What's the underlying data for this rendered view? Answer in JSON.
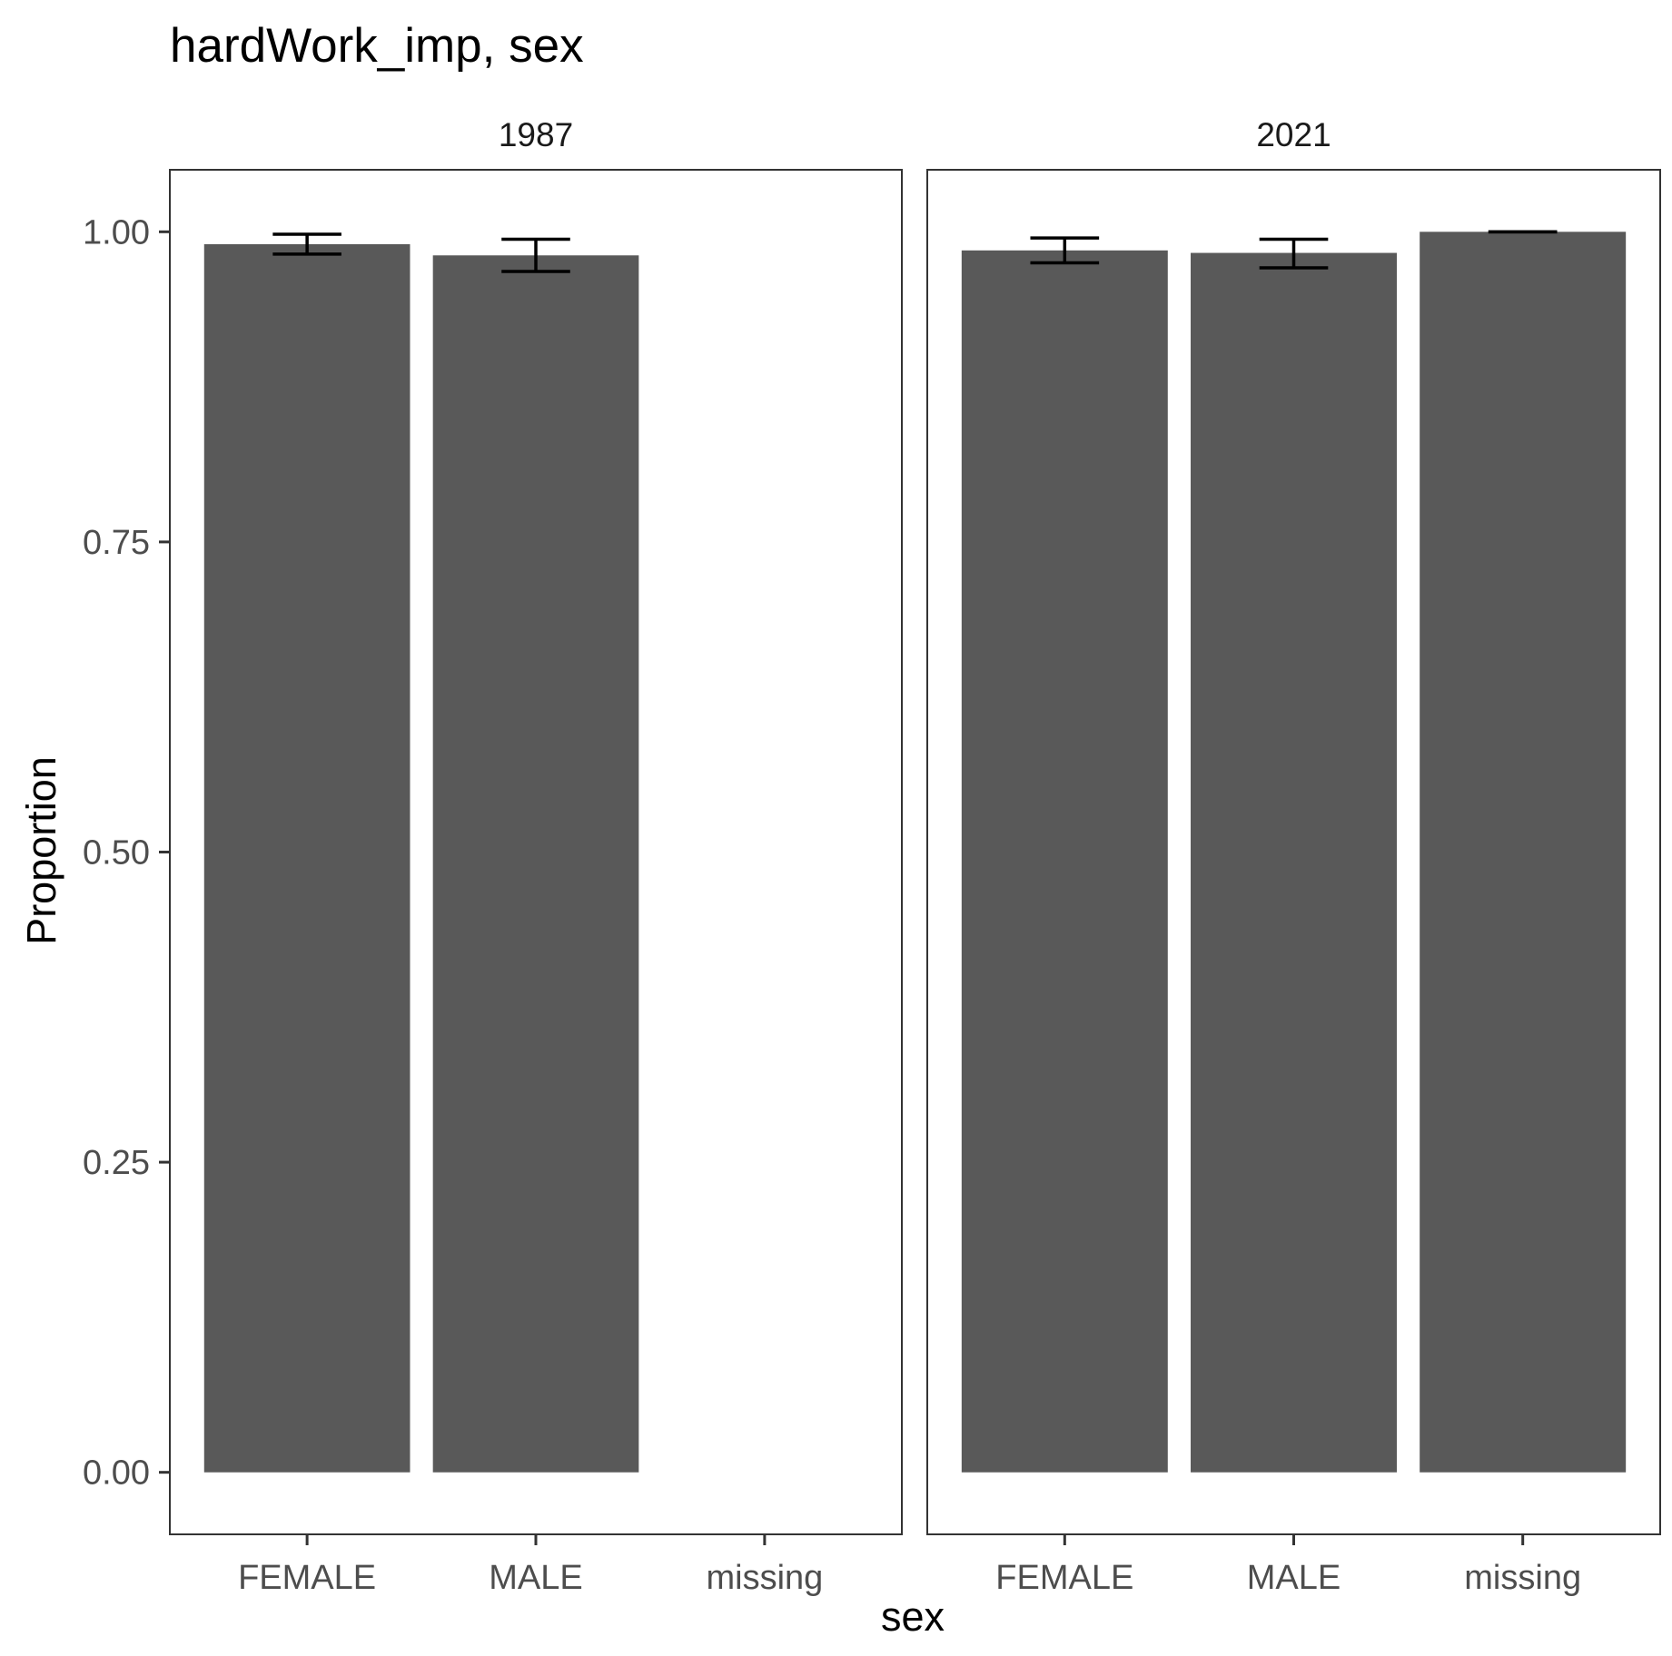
{
  "chart_data": {
    "type": "bar",
    "title": "hardWork_imp, sex",
    "xlabel": "sex",
    "ylabel": "Proportion",
    "ylim": [
      -0.05,
      1.05
    ],
    "yticks": [
      "0.00",
      "0.25",
      "0.50",
      "0.75",
      "1.00"
    ],
    "categories": [
      "FEMALE",
      "MALE",
      "missing"
    ],
    "grid": false,
    "bar_color": "#595959",
    "facets": [
      {
        "label": "1987",
        "bars": [
          {
            "category": "FEMALE",
            "value": 0.99,
            "lower": 0.982,
            "upper": 0.998
          },
          {
            "category": "MALE",
            "value": 0.981,
            "lower": 0.968,
            "upper": 0.994
          },
          {
            "category": "missing",
            "value": null,
            "lower": null,
            "upper": null
          }
        ]
      },
      {
        "label": "2021",
        "bars": [
          {
            "category": "FEMALE",
            "value": 0.985,
            "lower": 0.975,
            "upper": 0.995
          },
          {
            "category": "MALE",
            "value": 0.983,
            "lower": 0.971,
            "upper": 0.994
          },
          {
            "category": "missing",
            "value": 1.0,
            "lower": 1.0,
            "upper": 1.0
          }
        ]
      }
    ]
  }
}
